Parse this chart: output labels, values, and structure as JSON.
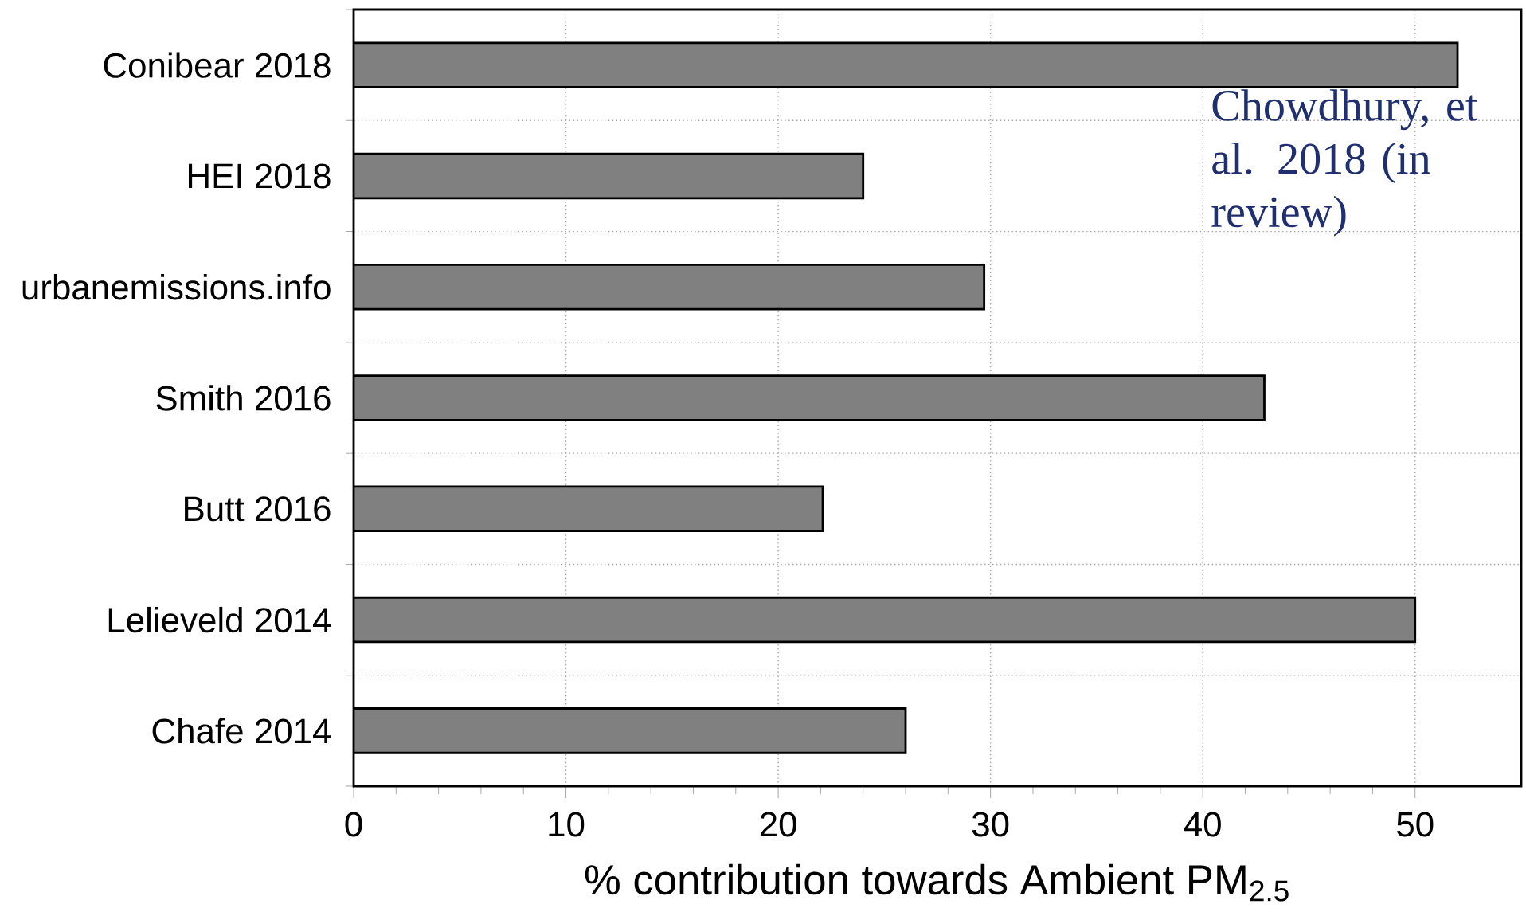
{
  "chart_data": {
    "type": "bar",
    "orientation": "horizontal",
    "categories": [
      "Conibear 2018",
      "HEI 2018",
      "urbanemissions.info",
      "Smith 2016",
      "Butt 2016",
      "Lelieveld 2014",
      "Chafe 2014"
    ],
    "values": [
      52,
      24,
      29.7,
      42.9,
      22.1,
      50,
      26
    ],
    "color": "#808080",
    "xlim": [
      0,
      55
    ],
    "xticks": [
      0,
      10,
      20,
      30,
      40,
      50
    ],
    "xlabel": "% contribution towards Ambient PM$_{2.5}$",
    "annotations": [
      "Chowdhury, et al. 2018 (in review)"
    ],
    "grid": true
  }
}
